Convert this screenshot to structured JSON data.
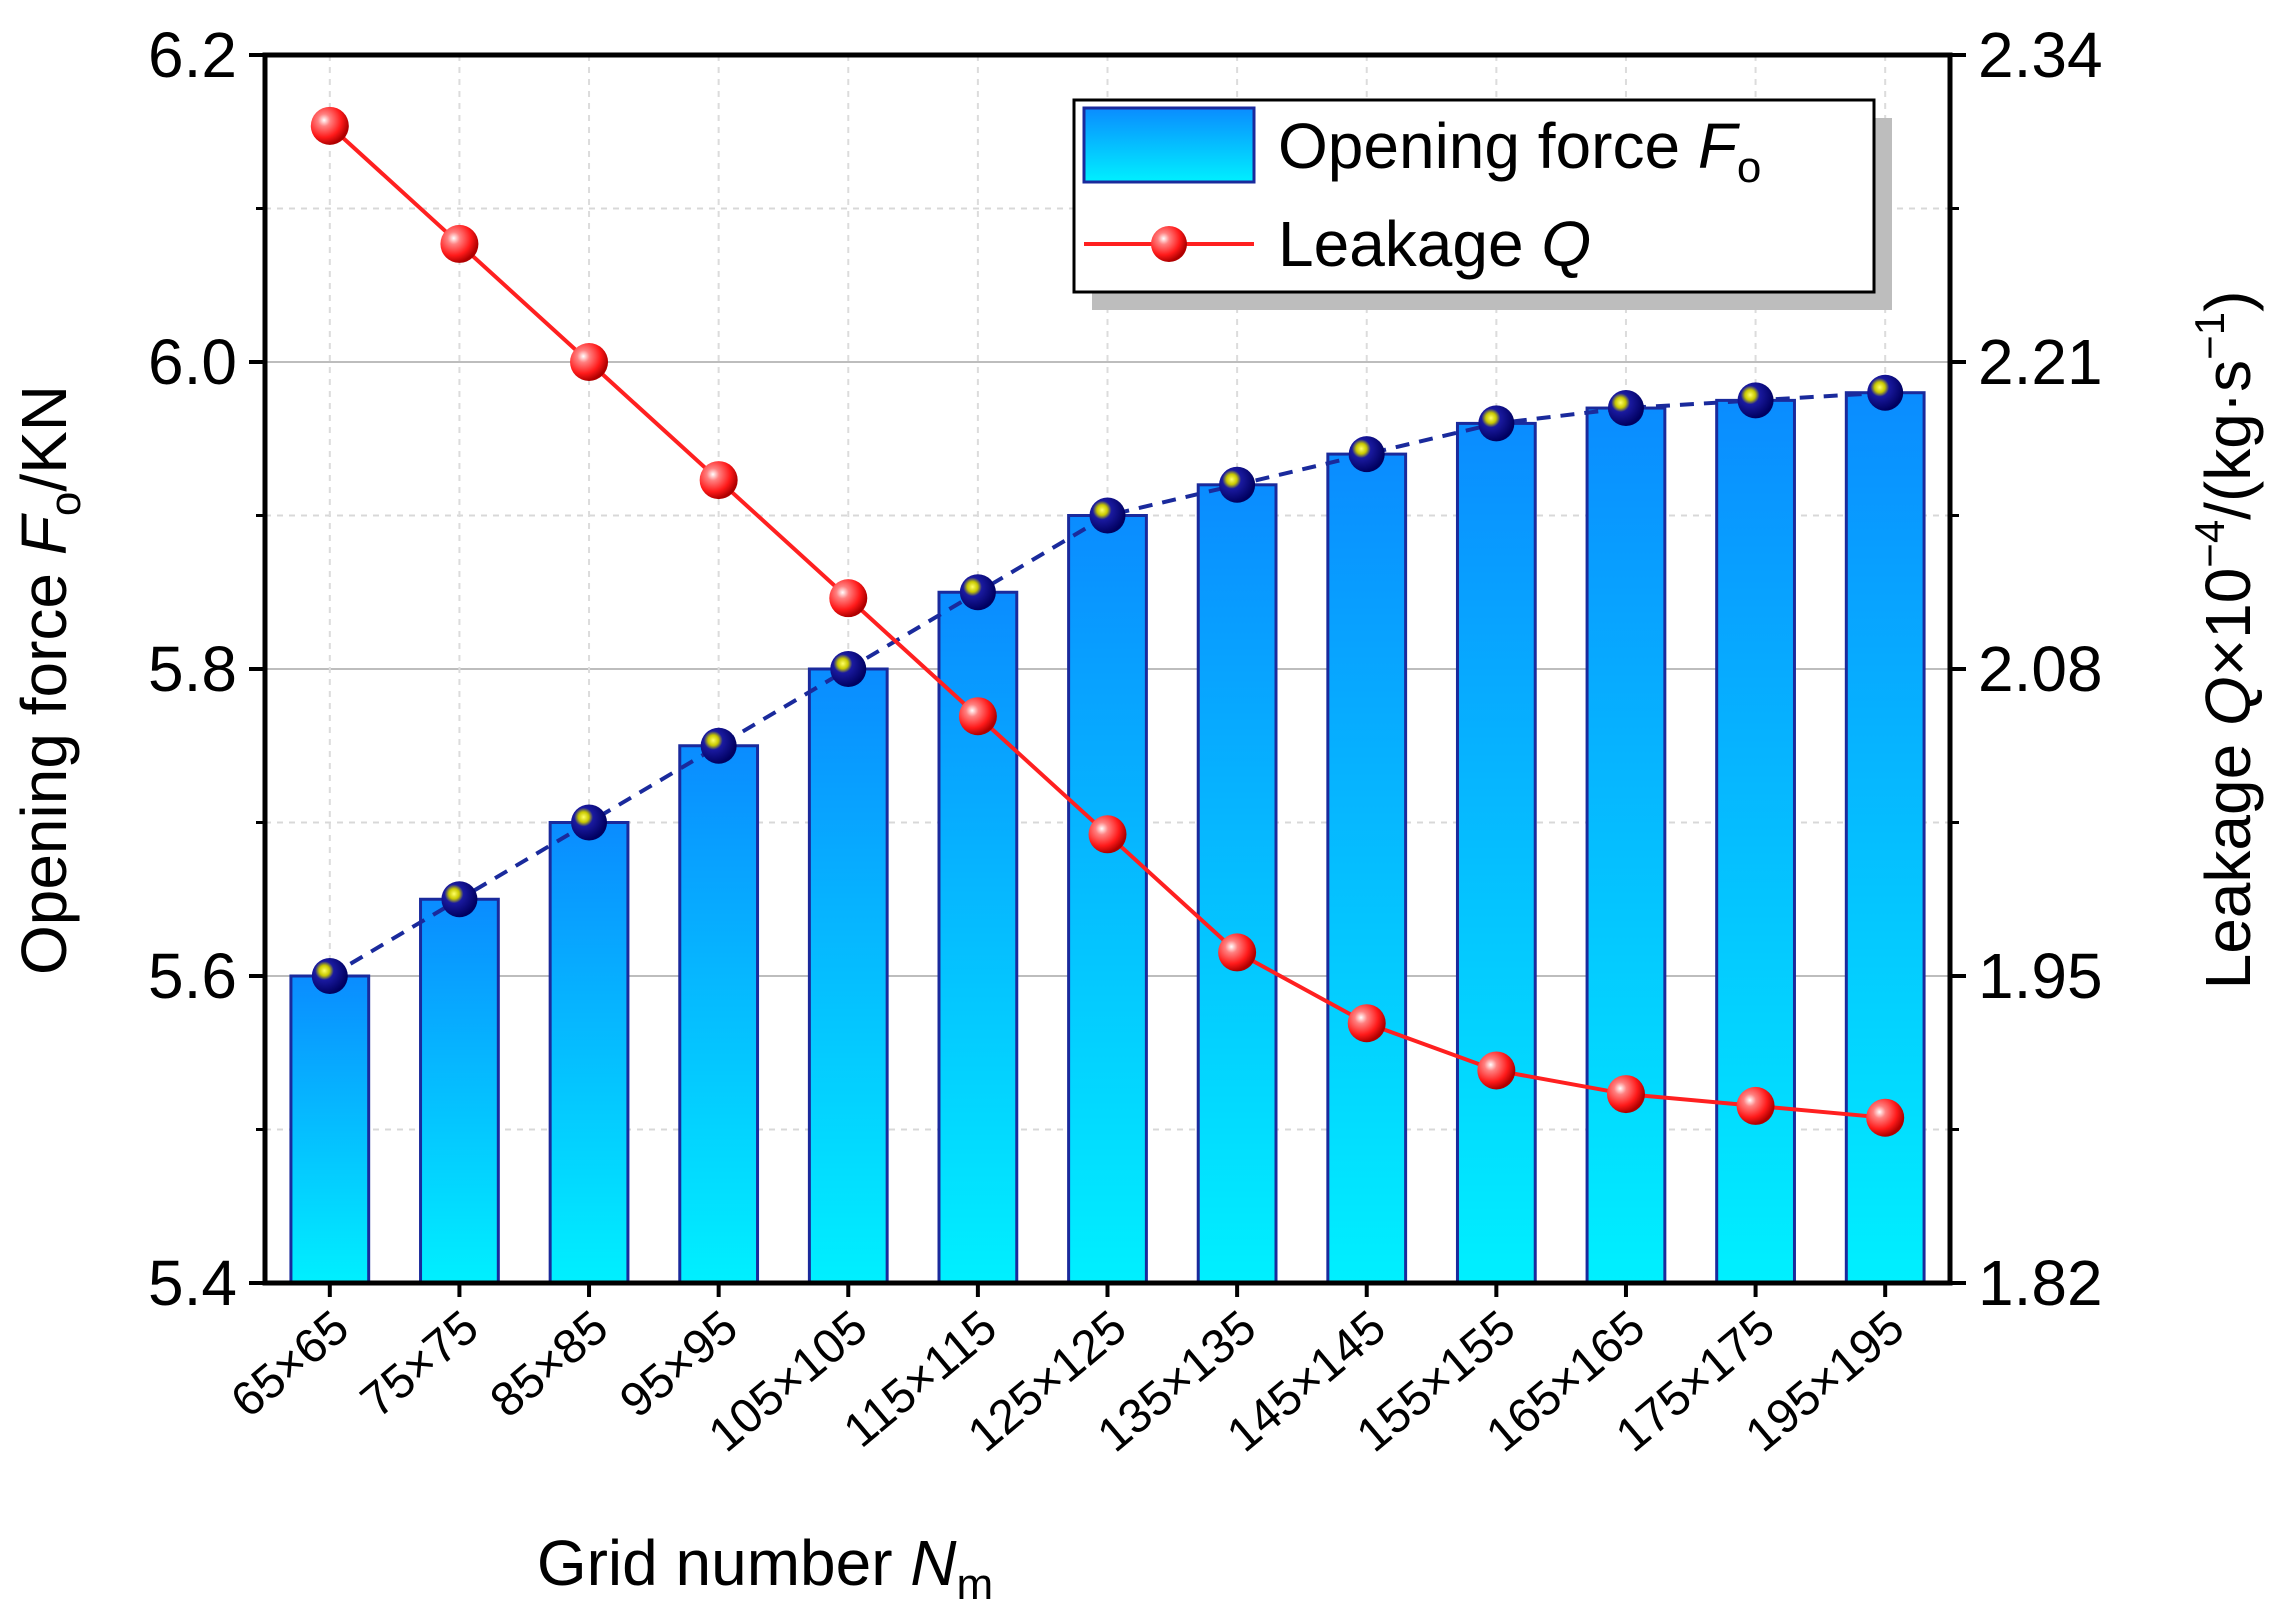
{
  "chart_data": {
    "type": "bar",
    "xlabel": {
      "main": "Grid number ",
      "var": "N",
      "sub": "m"
    },
    "ylabel_left": {
      "main": "Opening force ",
      "var": "F",
      "sub": "o",
      "tail": "/KN"
    },
    "ylabel_right": {
      "main": "Leakage ",
      "var": "Q",
      "mid": "×10",
      "sup": "−4",
      "tail": "/(kg·s",
      "sup2": "−1",
      "tail2": ")"
    },
    "categories": [
      "65×65",
      "75×75",
      "85×85",
      "95×95",
      "105×105",
      "115×115",
      "125×125",
      "135×135",
      "145×145",
      "155×155",
      "165×165",
      "175×175",
      "195×195"
    ],
    "series": [
      {
        "name": "Opening force",
        "legend_main": "Opening force ",
        "legend_var": "F",
        "legend_sub": "o",
        "axis": "left",
        "kind": "bar",
        "values": [
          5.6,
          5.65,
          5.7,
          5.75,
          5.8,
          5.85,
          5.9,
          5.92,
          5.94,
          5.96,
          5.97,
          5.975,
          5.98
        ],
        "color_top": "#0a8cff",
        "color_bottom": "#00f0ff",
        "edge_color": "#1a2a9c",
        "trend_color": "#1a2a9c"
      },
      {
        "name": "Leakage Q",
        "legend_main": "Leakage ",
        "legend_var": "Q",
        "axis": "right",
        "kind": "line",
        "values": [
          2.31,
          2.26,
          2.21,
          2.16,
          2.11,
          2.06,
          2.01,
          1.96,
          1.93,
          1.91,
          1.9,
          1.895,
          1.89
        ],
        "color": "#ff2020"
      }
    ],
    "yleft": {
      "min": 5.4,
      "max": 6.2,
      "ticks": [
        "5.4",
        "5.6",
        "5.8",
        "6.0",
        "6.2"
      ]
    },
    "yright": {
      "min": 1.82,
      "max": 2.34,
      "ticks": [
        "1.82",
        "1.95",
        "2.08",
        "2.21",
        "2.34"
      ]
    },
    "grid": true,
    "legend_position": "top-right"
  }
}
